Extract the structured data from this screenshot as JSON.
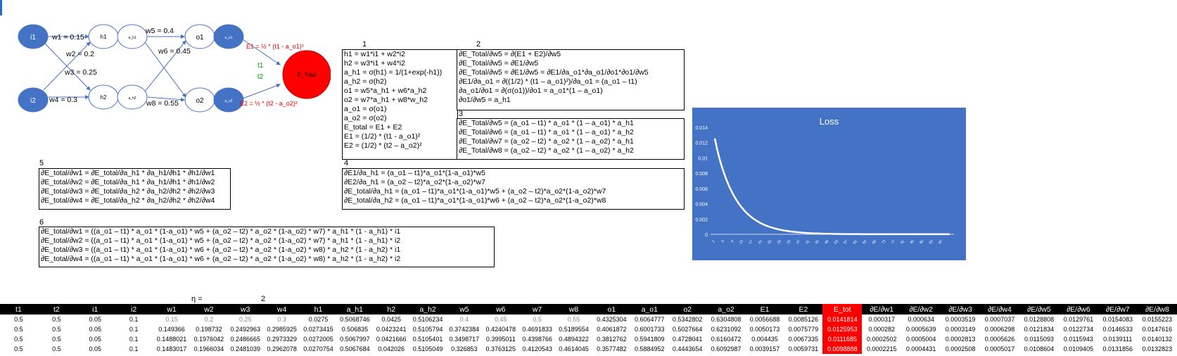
{
  "network": {
    "nodes": {
      "i1": "i1",
      "i2": "i2",
      "h1": "h1",
      "h2": "h2",
      "ah1": "a_h1",
      "ah2": "a_h2",
      "o1": "o1",
      "o2": "o2",
      "ao1": "a_o1",
      "ao2": "a_o2",
      "etotal": "E_Total"
    },
    "weights": {
      "w1": "w1 = 0.15",
      "w2": "w2 = 0.2",
      "w3": "w3 = 0.25",
      "w4": "w4 = 0.3",
      "w5": "w5 = 0.4",
      "w6": "w6 = 0.45",
      "w7": "w7 = 0.5",
      "w8": "w8 = 0.55"
    },
    "e1": "E1 = ½ * (t1 - a_o1)²",
    "e2": "E2 = ½ * (t2 - a_o2)²",
    "t1": "t1",
    "t2": "t2"
  },
  "boxes": {
    "b1": {
      "label": "1",
      "lines": [
        "h1 = w1*i1 + w2*i2",
        "h2 = w3*i1 + w4*i2",
        "a_h1 = σ(h1) = 1/(1+exp(-h1))",
        "a_h2 = σ(h2)",
        "o1 = w5*a_h1 + w6*a_h2",
        "o2 = w7*a_h1 + w8*w_h2",
        "a_o1 = σ(o1)",
        "a_o2 = σ(o2)",
        "E_total = E1 + E2",
        "E1 = (1/2) * (t1 - a_o1)²",
        "E2 = (1/2) * (t2 – a_o2)²"
      ]
    },
    "b2": {
      "label": "2",
      "lines": [
        "∂E_Total/∂w5 = ∂(E1 + E2)/∂w5",
        "∂E_Total/∂w5 = ∂E1/∂w5",
        "∂E_Total/∂w5 = ∂E1/∂w5 = ∂E1/∂a_o1*∂a_o1/∂o1*∂o1/∂w5",
        "∂E1/∂a_o1 = ∂((1/2) * (t1 – a_o1)²)/∂a_o1 = (a_o1 – t1)",
        "∂a_o1/∂o1 = ∂(σ(o1))/∂o1 = a_o1*(1 – a_o1)",
        "∂o1/∂w5 = a_h1"
      ]
    },
    "b3": {
      "label": "3",
      "lines": [
        "∂E_Total/∂w5 = (a_o1 – t1) * a_o1 * (1 – a_o1) * a_h1",
        "∂E_Total/∂w6 = (a_o1 – t1) * a_o1 * (1 – a_o1) * a_h2",
        "∂E_Total/∂w7 = (a_o2 – t2) * a_o2 * (1 – a_o2) * a_h1",
        "∂E_Total/∂w8 = (a_o2 – t2) * a_o2 * (1 – a_o2) * a_h2"
      ]
    },
    "b4": {
      "label": "4",
      "lines": [
        "∂E1/∂a_h1 = (a_o1 – t1)*a_o1*(1-a_o1)*w5",
        "∂E2/∂a_h1 = (a_o2 – t2)*a_o2*(1-a_o2)*w7",
        "∂E_total/∂a_h1 = (a_o1 – t1)*a_o1*(1-a_o1)*w5 +  (a_o2 – t2)*a_o2*(1-a_o2)*w7",
        "∂E_total/∂a_h2 = (a_o1 – t1)*a_o1*(1-a_o1)*w6 +  (a_o2 – t2)*a_o2*(1-a_o2)*w8"
      ]
    },
    "b5": {
      "label": "5",
      "lines": [
        "∂E_total/∂w1 = ∂E_total/∂a_h1 * ∂a_h1/∂h1 * ∂h1/∂w1",
        "∂E_total/∂w2 = ∂E_total/∂a_h1 * ∂a_h1/∂h1 * ∂h1/∂w2",
        "∂E_total/∂w3 = ∂E_total/∂a_h2 * ∂a_h2/∂h2 * ∂h2/∂w3",
        "∂E_total/∂w4 = ∂E_total/∂a_h2 * ∂a_h2/∂h2 * ∂h2/∂w4"
      ]
    },
    "b6": {
      "label": "6",
      "lines": [
        "∂E_total/∂w1 = ((a_o1 – t1) * a_o1 * (1-a_o1) * w5 +  (a_o2 – t2) * a_o2 * (1-a_o2) * w7) * a_h1 * (1 - a_h1) * i1",
        "∂E_total/∂w2 = ((a_o1 – t1) * a_o1 * (1-a_o1) * w5 +  (a_o2 – t2) * a_o2 * (1-a_o2) * w7) * a_h1 * (1 - a_h1) * i2",
        "∂E_total/∂w3 = ((a_o1 – t1) * a_o1 * (1-a_o1) * w6 +  (a_o2 – t2) * a_o2 * (1-a_o2) * w8) * a_h2 * (1 - a_h2) * i1",
        "∂E_total/∂w4 = ((a_o1 – t1) * a_o1 * (1-a_o1) * w6 +  (a_o2 – t2) * a_o2 * (1-a_o2) * w8) * a_h2 * (1 - a_h2) * i2"
      ]
    }
  },
  "eta": {
    "label": "η =",
    "value": "2"
  },
  "chart_data": {
    "type": "line",
    "title": "Loss",
    "xlabel": "",
    "ylabel": "",
    "ylim": [
      0,
      0.014
    ],
    "yticks": [
      "0",
      "0.002",
      "0.004",
      "0.006",
      "0.008",
      "0.01",
      "0.012",
      "0.014"
    ],
    "xticks": [
      "1",
      "5",
      "9",
      "13",
      "17",
      "21",
      "25",
      "29",
      "33",
      "37",
      "41",
      "45",
      "49",
      "53",
      "57",
      "61",
      "65",
      "69",
      "73",
      "77",
      "81",
      "85",
      "89",
      "93",
      "97"
    ],
    "series": [
      {
        "values": [
          0.01255,
          0.01111,
          0.00989,
          0.00883,
          0.00789,
          0.00706,
          0.00632,
          0.00566,
          0.00507,
          0.00454,
          0.00407,
          0.00365,
          0.00327,
          0.00293,
          0.00263,
          0.00236,
          0.00211,
          0.00189,
          0.0017,
          0.00152,
          0.00136,
          0.00122,
          0.0011,
          0.00098,
          0.00088,
          0.00079,
          0.00071,
          0.00064,
          0.00057,
          0.00051,
          0.00046,
          0.00041,
          0.00037,
          0.00033,
          0.0003,
          0.00027,
          0.00024,
          0.00021,
          0.00019,
          0.00017,
          0.00015,
          0.00014,
          0.00012,
          0.00011,
          0.0001,
          9e-05,
          8e-05,
          7e-05,
          6e-05,
          6e-05,
          5e-05,
          5e-05,
          4e-05,
          4e-05,
          3e-05,
          3e-05,
          3e-05,
          2e-05,
          2e-05,
          2e-05,
          2e-05,
          2e-05,
          1e-05,
          1e-05,
          1e-05,
          1e-05,
          1e-05,
          1e-05,
          1e-05,
          1e-05,
          1e-05,
          1e-05,
          1e-05,
          1e-05,
          1e-05,
          1e-05,
          1e-05,
          1e-05,
          1e-05,
          1e-05,
          1e-05,
          1e-05,
          1e-05,
          1e-05,
          1e-05,
          1e-05,
          1e-05,
          1e-05,
          1e-05,
          1e-05,
          1e-05,
          1e-05,
          1e-05,
          1e-05,
          1e-05,
          1e-05,
          1e-05,
          1e-05,
          1e-05,
          1e-05
        ]
      }
    ],
    "colors": {
      "background": "#4472c4",
      "line": "#ffffff"
    }
  },
  "table": {
    "headers": [
      "t1",
      "t2",
      "i1",
      "i2",
      "w1",
      "w2",
      "w3",
      "w4",
      "h1",
      "a_h1",
      "h2",
      "a_h2",
      "w5",
      "w6",
      "w7",
      "w8",
      "o1",
      "a_o1",
      "o2",
      "a_o2",
      "E1",
      "E2",
      "E_tot",
      "∂E/∂w1",
      "∂E/∂w2",
      "∂E/∂w3",
      "∂E/∂w4",
      "∂E/∂w5",
      "∂E/∂w6",
      "∂E/∂w7",
      "∂E/∂w8"
    ],
    "rows": [
      [
        "0.5",
        "0.5",
        "0.05",
        "0.1",
        "0.15",
        "0.2",
        "0.25",
        "0.3",
        "0.0275",
        "0.5068746",
        "0.0425",
        "0.5106234",
        "0.4",
        "0.45",
        "0.5",
        "0.55",
        "0.4325304",
        "0.6064777",
        "0.5342802",
        "0.6304808",
        "0.0056688",
        "0.0085126",
        "0.0141814",
        "0.000317",
        "0.000634",
        "0.0003519",
        "0.0007037",
        "0.0128808",
        "0.0129761",
        "0.0154083",
        "0.0155223"
      ],
      [
        "0.5",
        "0.5",
        "0.05",
        "0.1",
        "0.149366",
        "0.198732",
        "0.2492963",
        "0.2985925",
        "0.0273415",
        "0.506835",
        "0.0423241",
        "0.5105794",
        "0.3742384",
        "0.4240478",
        "0.4691833",
        "0.5189554",
        "0.4061872",
        "0.6001733",
        "0.5027664",
        "0.6231092",
        "0.0050173",
        "0.0075779",
        "0.0125953",
        "0.000282",
        "0.0005639",
        "0.0003149",
        "0.0006298",
        "0.0121834",
        "0.0122734",
        "0.0146533",
        "0.0147616"
      ],
      [
        "0.5",
        "0.5",
        "0.05",
        "0.1",
        "0.1488021",
        "0.1976042",
        "0.2486665",
        "0.2973329",
        "0.0272005",
        "0.5067997",
        "0.0421666",
        "0.5105401",
        "0.3498717",
        "0.3995011",
        "0.4398766",
        "0.4894322",
        "0.3812762",
        "0.5941809",
        "0.4728041",
        "0.6160472",
        "0.004435",
        "0.0067335",
        "0.0111685",
        "0.0002502",
        "0.0005004",
        "0.0002813",
        "0.0005626",
        "0.0115093",
        "0.0115943",
        "0.0139111",
        "0.0140132"
      ],
      [
        "0.5",
        "0.5",
        "0.05",
        "0.1",
        "0.1483017",
        "0.1966034",
        "0.2481039",
        "0.2962078",
        "0.0270754",
        "0.5067684",
        "0.042026",
        "0.5105049",
        "0.326853",
        "0.3763125",
        "0.4120543",
        "0.4614045",
        "0.3577482",
        "0.5884952",
        "0.4443654",
        "0.6092987",
        "0.0039157",
        "0.0059731",
        "0.0098888",
        "0.0002215",
        "0.0004431",
        "0.0002508",
        "0.0005017",
        "0.0108604",
        "0.0109405",
        "0.0131856",
        "0.0132823"
      ]
    ]
  }
}
